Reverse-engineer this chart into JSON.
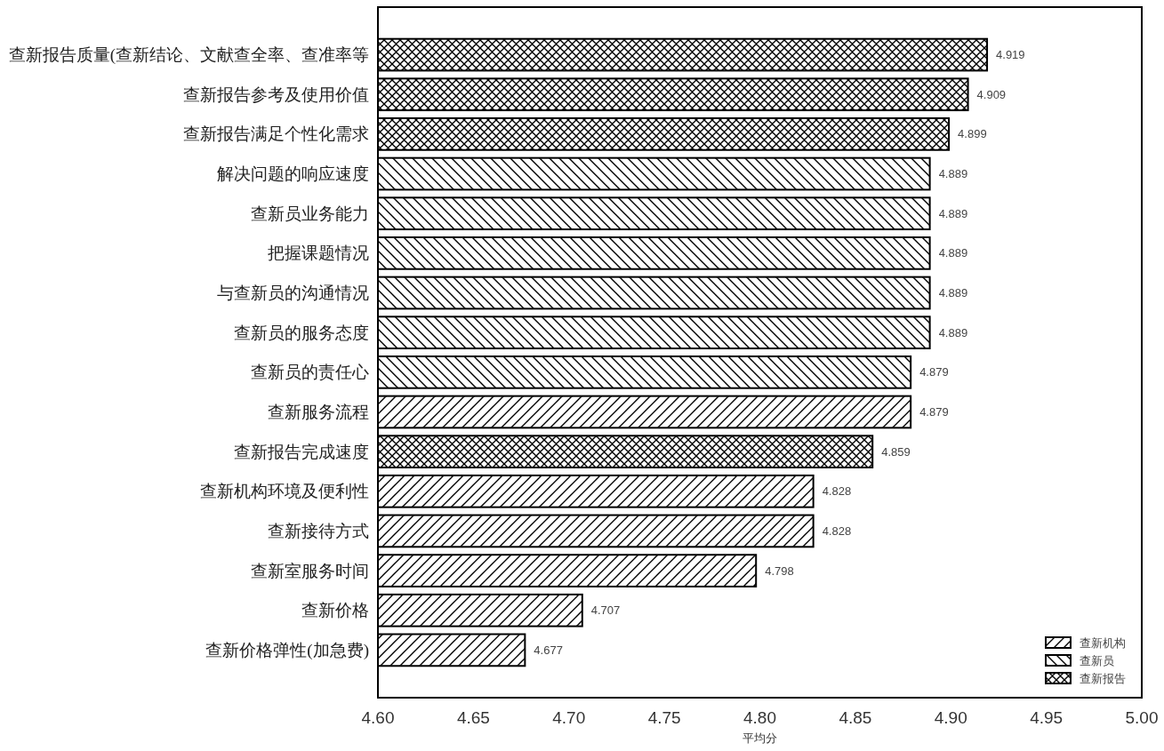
{
  "chart_data": {
    "type": "bar",
    "orientation": "horizontal",
    "stacked": true,
    "categories": [
      "查新报告质量(查新结论、文献查全率、查准率等",
      "查新报告参考及使用价值",
      "查新报告满足个性化需求",
      "解决问题的响应速度",
      "查新员业务能力",
      "把握课题情况",
      "与查新员的沟通情况",
      "查新员的服务态度",
      "查新员的责任心",
      "查新服务流程",
      "查新报告完成速度",
      "查新机构环境及便利性",
      "查新接待方式",
      "查新室服务时间",
      "查新价格",
      "查新价格弹性(加急费)"
    ],
    "series": [
      {
        "name": "查新机构",
        "color": "#000000",
        "values": [
          null,
          null,
          null,
          null,
          null,
          null,
          null,
          null,
          null,
          4.879,
          null,
          4.828,
          4.828,
          4.798,
          4.707,
          4.677
        ]
      },
      {
        "name": "查新员",
        "color": "#000000",
        "values": [
          null,
          null,
          null,
          4.889,
          4.889,
          4.889,
          4.889,
          4.889,
          4.879,
          null,
          null,
          null,
          null,
          null,
          null,
          null
        ]
      },
      {
        "name": "查新报告",
        "color": "#000000",
        "values": [
          4.919,
          4.909,
          4.899,
          null,
          null,
          null,
          null,
          null,
          null,
          null,
          4.859,
          null,
          null,
          null,
          null,
          null
        ]
      }
    ],
    "xlim": [
      4.6,
      5.0
    ],
    "xticks": [
      {
        "value": 4.6,
        "label": "4.60"
      },
      {
        "value": 4.65,
        "label": "4.65"
      },
      {
        "value": 4.7,
        "label": "4.70"
      },
      {
        "value": 4.75,
        "label": "4.75"
      },
      {
        "value": 4.8,
        "label": "4.80"
      },
      {
        "value": 4.85,
        "label": "4.85"
      },
      {
        "value": 4.9,
        "label": "4.90"
      },
      {
        "value": 4.95,
        "label": "4.95"
      },
      {
        "value": 5.0,
        "label": "5.00"
      }
    ],
    "xlabel": "平均分",
    "data_labels": true,
    "legend": "bottom right"
  }
}
